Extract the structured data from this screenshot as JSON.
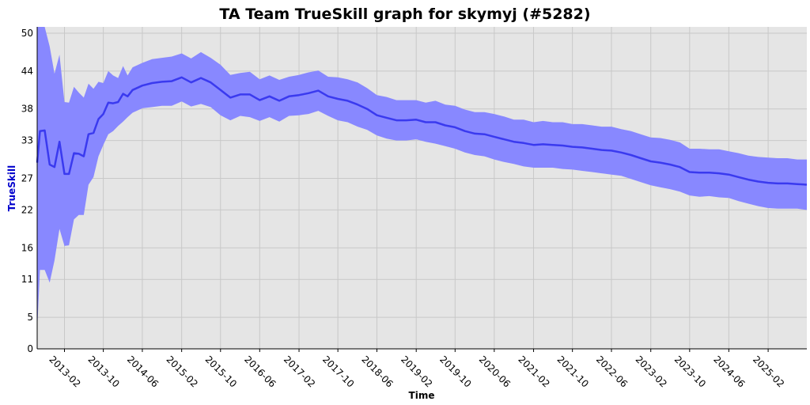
{
  "chart_data": {
    "type": "line",
    "title": "TA Team TrueSkill graph for skymyj (#5282)",
    "xlabel": "Time",
    "ylabel": "TrueSkill",
    "ylim": [
      0,
      51
    ],
    "y_ticks": [
      0,
      5,
      11,
      16,
      22,
      27,
      33,
      38,
      44,
      50
    ],
    "x_ticks": [
      "2013-02",
      "2013-10",
      "2014-06",
      "2015-02",
      "2015-10",
      "2016-06",
      "2017-02",
      "2017-10",
      "2018-06",
      "2019-02",
      "2019-10",
      "2020-06",
      "2021-02",
      "2021-10",
      "2022-06",
      "2023-02",
      "2023-10",
      "2024-06",
      "2025-02"
    ],
    "x_range": [
      "2012-08-15",
      "2025-09-30"
    ],
    "grid": true,
    "legend": "none",
    "colors": {
      "plot_background": "#e5e5e5",
      "grid": "#c8c8c8",
      "line": "#3a3aef",
      "band": "#8888ff",
      "ylabel": "#0000cc"
    },
    "series": [
      {
        "x": [
          "2012-08-15",
          "2012-09-01",
          "2012-10-01",
          "2012-11-01",
          "2012-12-01",
          "2013-01-01",
          "2013-02-01",
          "2013-03-01",
          "2013-04-01",
          "2013-05-01",
          "2013-06-01",
          "2013-07-01",
          "2013-08-01",
          "2013-09-01",
          "2013-10-01",
          "2013-11-01",
          "2013-12-01",
          "2014-01-01",
          "2014-02-01",
          "2014-03-01",
          "2014-04-01",
          "2014-06-01",
          "2014-08-01",
          "2014-10-01",
          "2014-12-01",
          "2015-02-01",
          "2015-04-01",
          "2015-06-01",
          "2015-08-01",
          "2015-10-01",
          "2015-12-01",
          "2016-02-01",
          "2016-04-01",
          "2016-06-01",
          "2016-08-01",
          "2016-10-01",
          "2016-12-01",
          "2017-02-01",
          "2017-04-01",
          "2017-06-01",
          "2017-08-01",
          "2017-10-01",
          "2017-12-01",
          "2018-02-01",
          "2018-04-01",
          "2018-06-01",
          "2018-08-01",
          "2018-10-01",
          "2018-12-01",
          "2019-02-01",
          "2019-04-01",
          "2019-06-01",
          "2019-08-01",
          "2019-10-01",
          "2019-12-01",
          "2020-02-01",
          "2020-04-01",
          "2020-06-01",
          "2020-08-01",
          "2020-10-01",
          "2020-12-01",
          "2021-02-01",
          "2021-04-01",
          "2021-06-01",
          "2021-08-01",
          "2021-10-01",
          "2021-12-01",
          "2022-02-01",
          "2022-04-01",
          "2022-06-01",
          "2022-08-01",
          "2022-10-01",
          "2022-12-01",
          "2023-02-01",
          "2023-04-01",
          "2023-06-01",
          "2023-08-01",
          "2023-10-01",
          "2023-12-01",
          "2024-02-01",
          "2024-04-01",
          "2024-06-01",
          "2024-08-01",
          "2024-10-01",
          "2024-12-01",
          "2025-02-01",
          "2025-04-01",
          "2025-06-01",
          "2025-08-01",
          "2025-09-30"
        ],
        "values": [
          29.5,
          34.5,
          34.6,
          29.2,
          28.8,
          32.8,
          27.7,
          27.7,
          31.0,
          30.9,
          30.5,
          34.0,
          34.2,
          36.4,
          37.2,
          39.0,
          38.9,
          39.1,
          40.4,
          40.0,
          41.0,
          41.7,
          42.1,
          42.3,
          42.4,
          43.0,
          42.2,
          42.9,
          42.2,
          41.0,
          39.8,
          40.3,
          40.3,
          39.4,
          40.0,
          39.3,
          40.0,
          40.2,
          40.5,
          40.9,
          40.0,
          39.6,
          39.3,
          38.7,
          38.0,
          37.0,
          36.6,
          36.2,
          36.2,
          36.3,
          35.9,
          35.9,
          35.4,
          35.1,
          34.5,
          34.1,
          34.0,
          33.6,
          33.2,
          32.8,
          32.6,
          32.3,
          32.4,
          32.3,
          32.2,
          32.0,
          31.9,
          31.7,
          31.5,
          31.4,
          31.1,
          30.7,
          30.2,
          29.7,
          29.5,
          29.2,
          28.8,
          28.0,
          27.9,
          27.9,
          27.8,
          27.6,
          27.2,
          26.8,
          26.5,
          26.3,
          26.2,
          26.2,
          26.1,
          26.0
        ],
        "lower": [
          3.0,
          12.5,
          12.5,
          10.5,
          14.0,
          19.0,
          16.3,
          16.4,
          20.5,
          21.2,
          21.2,
          26.0,
          27.2,
          30.5,
          32.3,
          34.0,
          34.5,
          35.3,
          36.0,
          36.7,
          37.4,
          38.1,
          38.3,
          38.5,
          38.5,
          39.2,
          38.4,
          38.8,
          38.3,
          37.0,
          36.2,
          36.9,
          36.7,
          36.1,
          36.7,
          36.0,
          36.9,
          37.0,
          37.2,
          37.7,
          36.9,
          36.2,
          35.9,
          35.2,
          34.7,
          33.8,
          33.3,
          33.0,
          33.0,
          33.2,
          32.8,
          32.5,
          32.1,
          31.7,
          31.1,
          30.7,
          30.5,
          30.0,
          29.6,
          29.3,
          28.9,
          28.7,
          28.7,
          28.7,
          28.5,
          28.4,
          28.2,
          28.0,
          27.8,
          27.6,
          27.4,
          26.9,
          26.4,
          25.9,
          25.6,
          25.3,
          24.9,
          24.3,
          24.1,
          24.2,
          24.0,
          23.9,
          23.4,
          23.0,
          22.6,
          22.3,
          22.2,
          22.2,
          22.2,
          22.0
        ]
      }
    ]
  }
}
